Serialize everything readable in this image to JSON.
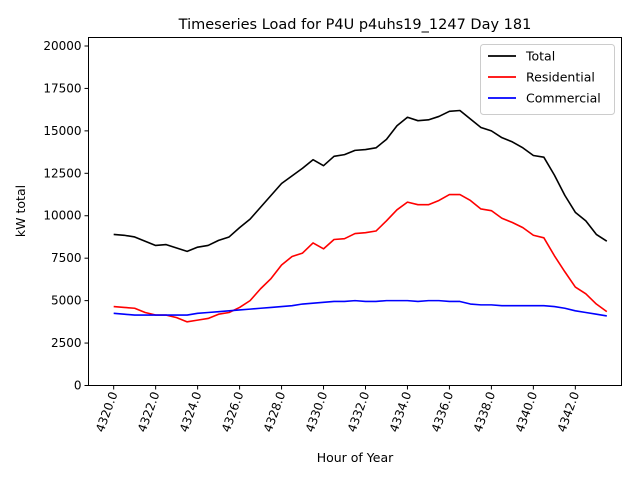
{
  "chart_data": {
    "type": "line",
    "title": "Timeseries Load for P4U p4uhs19_1247  Day 181",
    "xlabel": "Hour of Year",
    "ylabel": "kW total",
    "xlim": [
      4318.8,
      4344.2
    ],
    "ylim": [
      0,
      20500
    ],
    "xticks": [
      4320,
      4322,
      4324,
      4326,
      4328,
      4330,
      4332,
      4334,
      4336,
      4338,
      4340,
      4342
    ],
    "xtick_labels": [
      "4320.0",
      "4322.0",
      "4324.0",
      "4326.0",
      "4328.0",
      "4330.0",
      "4332.0",
      "4334.0",
      "4336.0",
      "4338.0",
      "4340.0",
      "4342.0"
    ],
    "yticks": [
      0,
      2500,
      5000,
      7500,
      10000,
      12500,
      15000,
      17500,
      20000
    ],
    "ytick_labels": [
      "0",
      "2500",
      "5000",
      "7500",
      "10000",
      "12500",
      "15000",
      "17500",
      "20000"
    ],
    "legend_position": "top-right",
    "x": [
      4320.0,
      4320.5,
      4321.0,
      4321.5,
      4322.0,
      4322.5,
      4323.0,
      4323.5,
      4324.0,
      4324.5,
      4325.0,
      4325.5,
      4326.0,
      4326.5,
      4327.0,
      4327.5,
      4328.0,
      4328.5,
      4329.0,
      4329.5,
      4330.0,
      4330.5,
      4331.0,
      4331.5,
      4332.0,
      4332.5,
      4333.0,
      4333.5,
      4334.0,
      4334.5,
      4335.0,
      4335.5,
      4336.0,
      4336.5,
      4337.0,
      4337.5,
      4338.0,
      4338.5,
      4339.0,
      4339.5,
      4340.0,
      4340.5,
      4341.0,
      4341.5,
      4342.0,
      4342.5,
      4343.0,
      4343.5
    ],
    "series": [
      {
        "name": "Total",
        "color": "#000000",
        "values": [
          8900,
          8850,
          8750,
          8500,
          8250,
          8300,
          8100,
          7900,
          8150,
          8250,
          8550,
          8750,
          9300,
          9800,
          10500,
          11200,
          11900,
          12350,
          12800,
          13300,
          12950,
          13500,
          13600,
          13850,
          13900,
          14000,
          14500,
          15300,
          15800,
          15600,
          15650,
          15850,
          16150,
          16200,
          15700,
          15200,
          15000,
          14600,
          14350,
          14000,
          13550,
          13450,
          12400,
          11200,
          10200,
          9700,
          8900,
          8500
        ]
      },
      {
        "name": "Residential",
        "color": "#ff0000",
        "values": [
          4650,
          4600,
          4550,
          4300,
          4150,
          4150,
          4000,
          3750,
          3850,
          3950,
          4200,
          4300,
          4600,
          5000,
          5700,
          6300,
          7100,
          7600,
          7800,
          8400,
          8050,
          8600,
          8650,
          8950,
          9000,
          9100,
          9700,
          10350,
          10800,
          10650,
          10650,
          10900,
          11250,
          11250,
          10900,
          10400,
          10300,
          9850,
          9600,
          9300,
          8850,
          8700,
          7650,
          6700,
          5800,
          5400,
          4800,
          4350
        ]
      },
      {
        "name": "Commercial",
        "color": "#0000ff",
        "values": [
          4250,
          4200,
          4150,
          4150,
          4150,
          4150,
          4150,
          4150,
          4250,
          4300,
          4350,
          4400,
          4450,
          4500,
          4550,
          4600,
          4650,
          4700,
          4800,
          4850,
          4900,
          4950,
          4950,
          5000,
          4950,
          4950,
          5000,
          5000,
          5000,
          4950,
          5000,
          5000,
          4950,
          4950,
          4800,
          4750,
          4750,
          4700,
          4700,
          4700,
          4700,
          4700,
          4650,
          4550,
          4400,
          4300,
          4200,
          4100
        ]
      }
    ]
  }
}
